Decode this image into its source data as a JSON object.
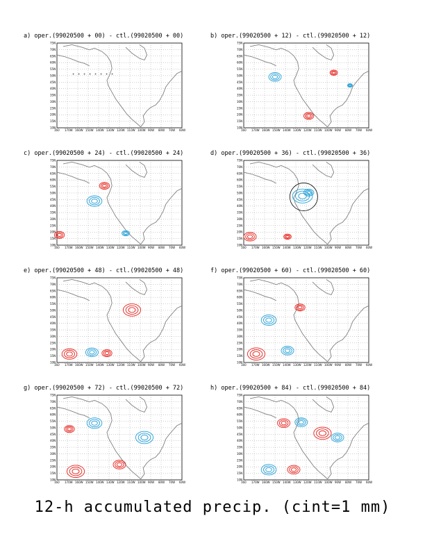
{
  "figure": {
    "caption": "12-h accumulated precip. (cint=1 mm)",
    "colors": {
      "positive": "#e8201a",
      "negative": "#22a0d8",
      "coast": "#808080",
      "grid": "#808080"
    }
  },
  "axes": {
    "lat_ticks": [
      "75N",
      "70N",
      "65N",
      "60N",
      "55N",
      "50N",
      "45N",
      "40N",
      "35N",
      "30N",
      "25N",
      "20N",
      "15N",
      "10N"
    ],
    "lon_ticks": [
      "160",
      "170W",
      "160W",
      "150W",
      "140W",
      "130W",
      "120W",
      "110W",
      "100W",
      "90W",
      "80W",
      "70W",
      "60W"
    ]
  },
  "panels": [
    {
      "id": "a",
      "title": "a) oper.(99020500 + 00) - ctl.(99020500 + 00)"
    },
    {
      "id": "b",
      "title": "b) oper.(99020500 + 12) - ctl.(99020500 + 12)"
    },
    {
      "id": "c",
      "title": "c) oper.(99020500 + 24) - ctl.(99020500 + 24)"
    },
    {
      "id": "d",
      "title": "d) oper.(99020500 + 36) - ctl.(99020500 + 36)"
    },
    {
      "id": "e",
      "title": "e) oper.(99020500 + 48) - ctl.(99020500 + 48)"
    },
    {
      "id": "f",
      "title": "f) oper.(99020500 + 60) - ctl.(99020500 + 60)"
    },
    {
      "id": "g",
      "title": "g) oper.(99020500 + 72) - ctl.(99020500 + 72)"
    },
    {
      "id": "h",
      "title": "h) oper.(99020500 + 84) - ctl.(99020500 + 84)"
    }
  ]
}
